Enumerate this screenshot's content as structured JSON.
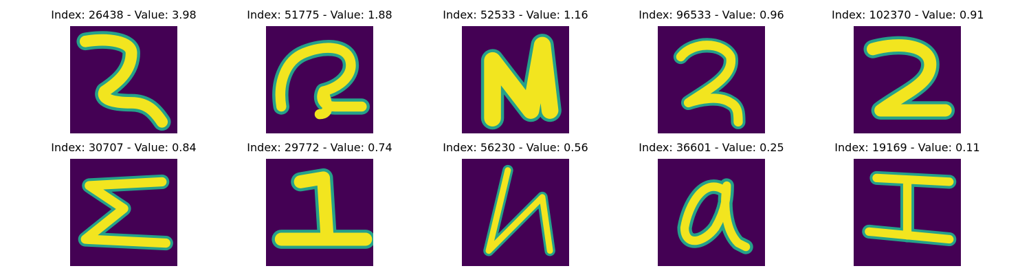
{
  "colors": {
    "background": "#440154",
    "glyph": "#f2e51f",
    "glyph_edge": "#25a18a"
  },
  "panels": [
    {
      "title": "Index: 26438 - Value: 3.98",
      "glyph": "2"
    },
    {
      "title": "Index: 51775 - Value: 1.88",
      "glyph": "R"
    },
    {
      "title": "Index: 52533 - Value: 1.16",
      "glyph": "N"
    },
    {
      "title": "Index: 96533 - Value: 0.96",
      "glyph": "2"
    },
    {
      "title": "Index: 102370 - Value: 0.91",
      "glyph": "2"
    },
    {
      "title": "Index: 30707 - Value: 0.84",
      "glyph": "Σ"
    },
    {
      "title": "Index: 29772 - Value: 0.74",
      "glyph": "1"
    },
    {
      "title": "Index: 56230 - Value: 0.56",
      "glyph": "N"
    },
    {
      "title": "Index: 36601 - Value: 0.25",
      "glyph": "a"
    },
    {
      "title": "Index: 19169 - Value: 0.11",
      "glyph": "I"
    }
  ]
}
